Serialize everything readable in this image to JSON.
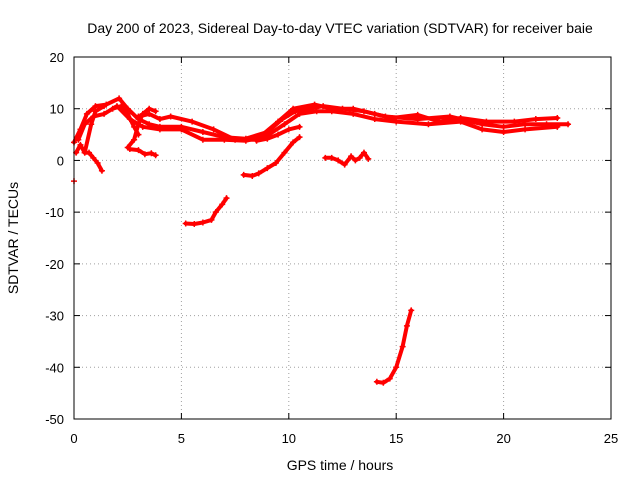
{
  "chart_data": {
    "type": "scatter",
    "title": "Day 200 of 2023, Sidereal Day-to-day VTEC variation (SDTVAR) for receiver baie",
    "xlabel": "GPS time / hours",
    "ylabel": "SDTVAR / TECUs",
    "xlim": [
      0,
      25
    ],
    "ylim": [
      -50,
      20
    ],
    "x_ticks": [
      0,
      5,
      10,
      15,
      20,
      25
    ],
    "y_ticks": [
      -50,
      -40,
      -30,
      -20,
      -10,
      0,
      10,
      20
    ],
    "grid": true,
    "color": "#ff0000",
    "series": [
      {
        "name": "main-band-a",
        "points": [
          [
            0.0,
            3.5
          ],
          [
            0.3,
            6
          ],
          [
            0.6,
            9
          ],
          [
            1.0,
            10.5
          ],
          [
            1.5,
            10.8
          ],
          [
            2.1,
            12
          ],
          [
            2.5,
            10
          ],
          [
            3.0,
            8
          ],
          [
            3.5,
            7
          ],
          [
            4.0,
            6.5
          ],
          [
            5.0,
            6.5
          ],
          [
            6.0,
            5.5
          ],
          [
            7.0,
            4.5
          ],
          [
            8.0,
            4.2
          ],
          [
            9.0,
            5.5
          ],
          [
            9.7,
            8
          ],
          [
            10.3,
            9.5
          ],
          [
            11.0,
            10
          ],
          [
            11.6,
            10.5
          ],
          [
            12.5,
            10
          ],
          [
            13.5,
            9.5
          ],
          [
            14.5,
            8.5
          ],
          [
            16.0,
            8
          ],
          [
            17.5,
            8.5
          ],
          [
            19.0,
            7
          ],
          [
            20.0,
            6.5
          ],
          [
            21.0,
            7
          ],
          [
            22.0,
            7
          ],
          [
            23.0,
            7
          ]
        ]
      },
      {
        "name": "main-band-b",
        "points": [
          [
            0.2,
            4
          ],
          [
            0.5,
            7
          ],
          [
            0.9,
            8.5
          ],
          [
            1.4,
            9
          ],
          [
            2.0,
            10.5
          ],
          [
            2.6,
            8
          ],
          [
            3.2,
            6.5
          ],
          [
            4.0,
            6
          ],
          [
            5.0,
            6
          ],
          [
            6.0,
            4
          ],
          [
            7.0,
            4
          ],
          [
            8.0,
            3.8
          ],
          [
            9.0,
            4.8
          ],
          [
            9.8,
            7
          ],
          [
            10.5,
            9
          ],
          [
            11.3,
            9.5
          ],
          [
            12.0,
            9.5
          ],
          [
            13.0,
            9
          ],
          [
            14.0,
            8
          ],
          [
            15.0,
            7.5
          ],
          [
            16.5,
            7
          ],
          [
            18.0,
            7.5
          ],
          [
            19.0,
            6
          ],
          [
            20.0,
            5.5
          ],
          [
            21.0,
            6
          ],
          [
            22.5,
            6.5
          ]
        ]
      },
      {
        "name": "main-band-c",
        "points": [
          [
            3.0,
            8.5
          ],
          [
            3.5,
            9
          ],
          [
            4.0,
            8
          ],
          [
            4.5,
            8.5
          ],
          [
            5.5,
            7.5
          ],
          [
            6.5,
            6
          ],
          [
            7.5,
            4
          ],
          [
            8.5,
            4
          ],
          [
            9.5,
            7.5
          ],
          [
            10.2,
            10
          ],
          [
            11.2,
            10.8
          ],
          [
            12.0,
            10
          ],
          [
            13.0,
            10
          ],
          [
            14.0,
            9
          ],
          [
            14.8,
            8.2
          ],
          [
            16.0,
            8.8
          ],
          [
            17.0,
            7.5
          ],
          [
            18.0,
            8.2
          ],
          [
            19.2,
            7.5
          ],
          [
            20.5,
            7.5
          ],
          [
            21.5,
            8
          ],
          [
            22.5,
            8.2
          ]
        ]
      },
      {
        "name": "branch-left-1",
        "points": [
          [
            0.1,
            1.5
          ],
          [
            0.3,
            3
          ],
          [
            0.5,
            1.5
          ],
          [
            0.7,
            1.5
          ],
          [
            0.9,
            0.5
          ],
          [
            1.1,
            -0.5
          ],
          [
            1.3,
            -2
          ]
        ]
      },
      {
        "name": "branch-left-2",
        "points": [
          [
            0.5,
            1.5
          ],
          [
            0.8,
            7
          ],
          [
            1.0,
            9.5
          ],
          [
            1.4,
            10.5
          ]
        ]
      },
      {
        "name": "branch-left-3",
        "points": [
          [
            0.0,
            -4
          ]
        ]
      },
      {
        "name": "branch-mid-1",
        "points": [
          [
            2.5,
            2.5
          ],
          [
            2.8,
            4
          ],
          [
            3.0,
            7
          ],
          [
            3.2,
            9
          ],
          [
            3.5,
            10
          ],
          [
            3.8,
            9.5
          ]
        ]
      },
      {
        "name": "branch-mid-2",
        "points": [
          [
            2.6,
            2.2
          ],
          [
            3.0,
            2
          ],
          [
            3.3,
            1.2
          ],
          [
            3.6,
            1.4
          ],
          [
            3.8,
            1
          ]
        ]
      },
      {
        "name": "branch-mid-3",
        "points": [
          [
            1.8,
            10
          ],
          [
            2.2,
            10.5
          ],
          [
            2.5,
            9
          ],
          [
            2.8,
            6.5
          ],
          [
            3.0,
            5
          ]
        ]
      },
      {
        "name": "arc-low-5-7",
        "points": [
          [
            5.2,
            -12.2
          ],
          [
            5.6,
            -12.3
          ],
          [
            6.0,
            -12
          ],
          [
            6.4,
            -11.5
          ],
          [
            6.6,
            -10
          ],
          [
            6.9,
            -8.5
          ],
          [
            7.1,
            -7.3
          ]
        ]
      },
      {
        "name": "arc-8-10",
        "points": [
          [
            7.9,
            -2.8
          ],
          [
            8.3,
            -3
          ],
          [
            8.6,
            -2.5
          ],
          [
            9.0,
            -1.5
          ],
          [
            9.4,
            -0.5
          ],
          [
            9.8,
            1.5
          ],
          [
            10.2,
            3.5
          ],
          [
            10.5,
            4.5
          ]
        ]
      },
      {
        "name": "arc-8-9-rise",
        "points": [
          [
            8.5,
            3.8
          ],
          [
            9.0,
            4.2
          ],
          [
            9.5,
            5
          ],
          [
            10.0,
            6
          ],
          [
            10.5,
            6.5
          ]
        ]
      },
      {
        "name": "arc-12-14",
        "points": [
          [
            11.7,
            0.5
          ],
          [
            12.0,
            0.5
          ],
          [
            12.3,
            0
          ],
          [
            12.6,
            -0.8
          ],
          [
            12.9,
            0.8
          ],
          [
            13.1,
            0
          ],
          [
            13.3,
            0.5
          ],
          [
            13.5,
            1.5
          ],
          [
            13.7,
            0.3
          ]
        ]
      },
      {
        "name": "arc-deep-14-16",
        "points": [
          [
            14.1,
            -42.8
          ],
          [
            14.4,
            -43
          ],
          [
            14.7,
            -42.2
          ],
          [
            15.0,
            -40
          ],
          [
            15.3,
            -36
          ],
          [
            15.5,
            -32
          ],
          [
            15.7,
            -29
          ]
        ]
      }
    ]
  }
}
